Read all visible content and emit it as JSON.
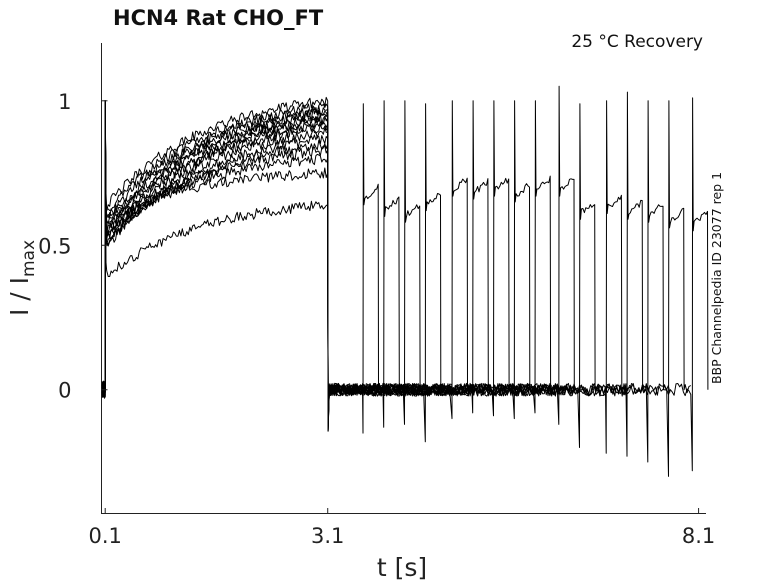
{
  "chart_data": {
    "type": "line",
    "title": "HCN4  Rat  CHO_FT",
    "condition": "25 °C  Recovery",
    "xlabel": "t [s]",
    "ylabel": {
      "main": "I / I",
      "subscript": "max"
    },
    "side_label": "BBP Channelpedia ID 23077 rep 1",
    "x_ticks": [
      0.1,
      3.1,
      8.1
    ],
    "x_tick_labels": [
      "0.1",
      "3.1",
      "8.1"
    ],
    "y_ticks": [
      0,
      0.5,
      1
    ],
    "y_tick_labels": [
      "0",
      "0.5",
      "1"
    ],
    "xlim": [
      0.05,
      8.2
    ],
    "ylim": [
      -0.43,
      1.2
    ],
    "grid": false,
    "protocol": {
      "prepulse_start": 0.1,
      "prepulse_end": 3.1,
      "test_pulse_duration": 0.2,
      "recovery_end_times": [
        3.58,
        3.86,
        4.14,
        4.42,
        4.78,
        5.06,
        5.34,
        5.62,
        5.9,
        6.22,
        6.5,
        6.86,
        7.14,
        7.42,
        7.7,
        8.02
      ],
      "test_spike_peaks": [
        0.99,
        1.0,
        1.0,
        0.99,
        1.0,
        1.0,
        1.0,
        1.0,
        1.0,
        1.05,
        0.99,
        1.0,
        1.03,
        1.0,
        1.0,
        1.01
      ],
      "recovery_dips": [
        -0.15,
        -0.13,
        -0.12,
        -0.18,
        -0.1,
        -0.08,
        -0.09,
        -0.1,
        -0.08,
        -0.12,
        -0.2,
        -0.22,
        -0.23,
        -0.25,
        -0.3,
        -0.28
      ]
    },
    "series": [
      {
        "prepulse_start_level": 0.63,
        "prepulse_end_level": 1.0
      },
      {
        "prepulse_start_level": 0.61,
        "prepulse_end_level": 0.98
      },
      {
        "prepulse_start_level": 0.59,
        "prepulse_end_level": 0.97
      },
      {
        "prepulse_start_level": 0.57,
        "prepulse_end_level": 0.96
      },
      {
        "prepulse_start_level": 0.56,
        "prepulse_end_level": 0.95
      },
      {
        "prepulse_start_level": 0.55,
        "prepulse_end_level": 0.94
      },
      {
        "prepulse_start_level": 0.53,
        "prepulse_end_level": 0.93
      },
      {
        "prepulse_start_level": 0.52,
        "prepulse_end_level": 0.92
      },
      {
        "prepulse_start_level": 0.51,
        "prepulse_end_level": 0.91
      },
      {
        "prepulse_start_level": 0.5,
        "prepulse_end_level": 0.89
      },
      {
        "prepulse_start_level": 0.49,
        "prepulse_end_level": 0.87
      },
      {
        "prepulse_start_level": 0.51,
        "prepulse_end_level": 0.85
      },
      {
        "prepulse_start_level": 0.52,
        "prepulse_end_level": 0.83
      },
      {
        "prepulse_start_level": 0.55,
        "prepulse_end_level": 0.8
      },
      {
        "prepulse_start_level": 0.6,
        "prepulse_end_level": 0.75
      },
      {
        "prepulse_start_level": 0.39,
        "prepulse_end_level": 0.64
      }
    ],
    "test_pulse_levels": [
      0.66,
      0.62,
      0.6,
      0.64,
      0.69,
      0.68,
      0.69,
      0.67,
      0.69,
      0.69,
      0.61,
      0.63,
      0.61,
      0.6,
      0.58,
      0.57
    ]
  }
}
